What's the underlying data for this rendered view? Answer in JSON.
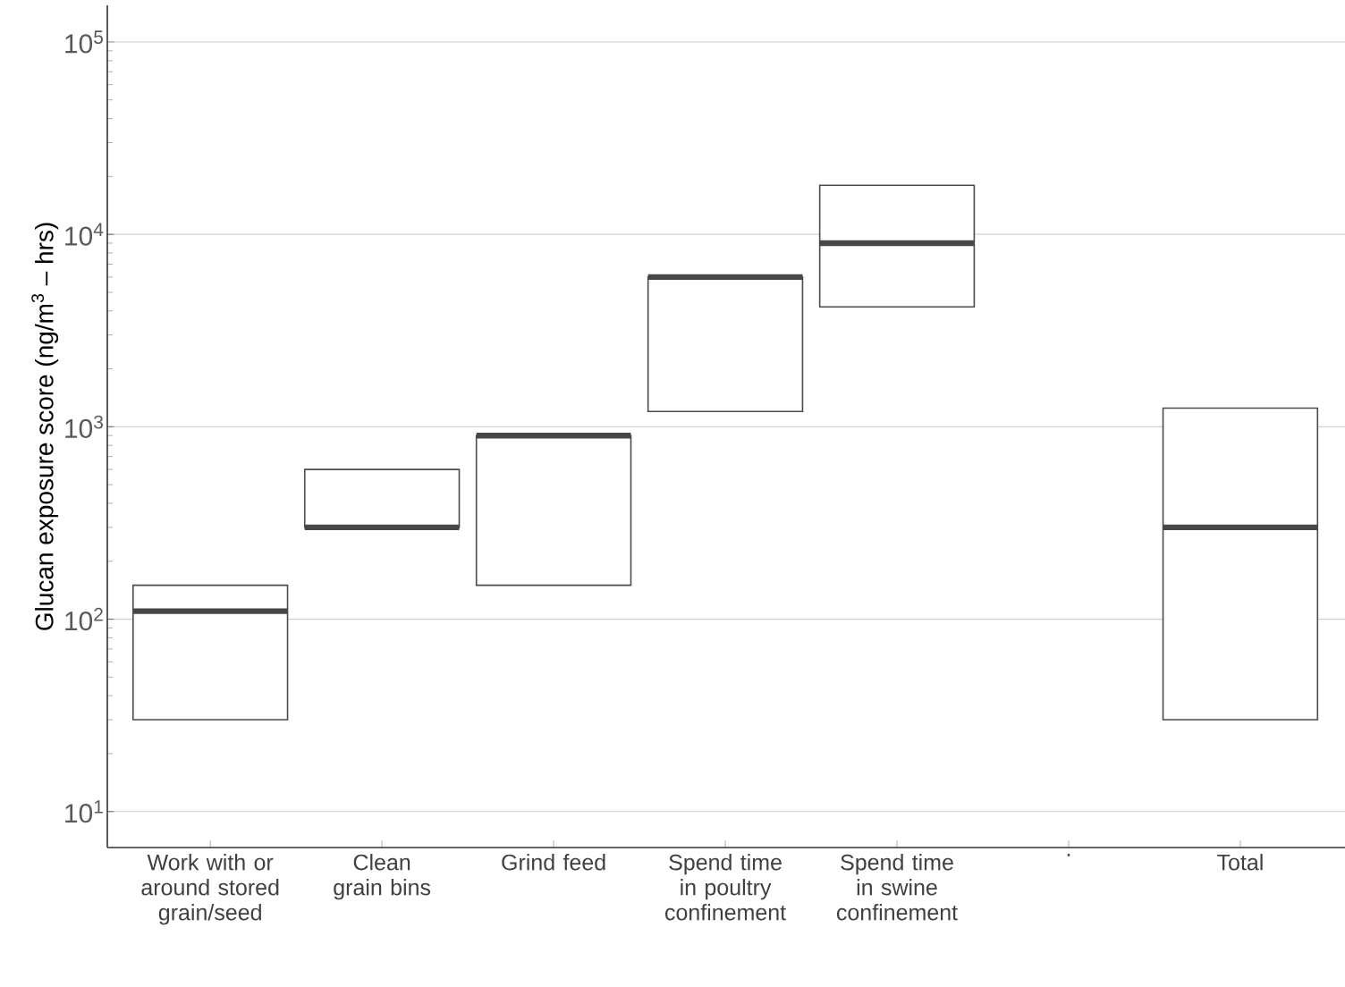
{
  "chart_data": {
    "type": "box",
    "ylabel": "Glucan exposure score (ng/m$^{3}$ – hrs)",
    "categories": [
      "Work with or around stored grain/seed",
      "Clean grain bins",
      "Grind feed",
      "Spend time in poultry confinement",
      "Spend time in swine confinement",
      ".",
      "Total"
    ],
    "boxes": [
      {
        "low": 30,
        "q1": 30,
        "median": 110,
        "q3": 150,
        "high": 150
      },
      {
        "low": 300,
        "q1": 300,
        "median": 300,
        "q3": 600,
        "high": 600
      },
      {
        "low": 150,
        "q1": 150,
        "median": 900,
        "q3": 900,
        "high": 900
      },
      {
        "low": 1200,
        "q1": 1200,
        "median": 6000,
        "q3": 6000,
        "high": 6000
      },
      {
        "low": 4200,
        "q1": 4200,
        "median": 9000,
        "q3": 18000,
        "high": 18000
      },
      null,
      {
        "low": 30,
        "q1": 30,
        "median": 300,
        "q3": 1250,
        "high": 1250
      }
    ],
    "log": "y",
    "grid": "y",
    "ylim": [
      6.5,
      155000
    ],
    "yticks": [
      {
        "value": 10,
        "label": "10$^{1}$"
      },
      {
        "value": 100,
        "label": "10$^{2}$"
      },
      {
        "value": 1000,
        "label": "10$^{3}$"
      },
      {
        "value": 10000,
        "label": "10$^{4}$"
      },
      {
        "value": 100000,
        "label": "10$^{5}$"
      }
    ]
  }
}
